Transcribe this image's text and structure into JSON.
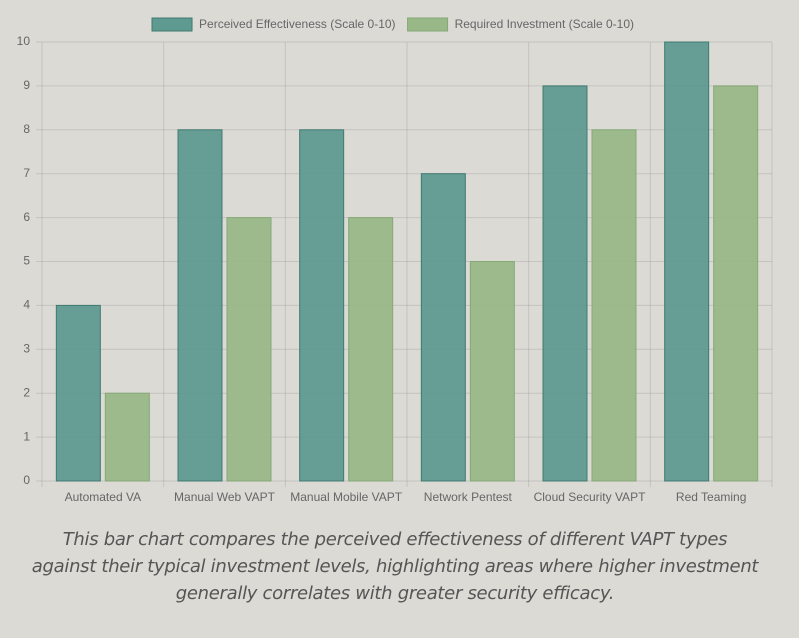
{
  "chart_data": {
    "type": "bar",
    "categories": [
      "Automated VA",
      "Manual Web VAPT",
      "Manual Mobile VAPT",
      "Network Pentest",
      "Cloud Security VAPT",
      "Red Teaming"
    ],
    "series": [
      {
        "name": "Perceived Effectiveness (Scale 0-10)",
        "color": "#5f9a90",
        "values": [
          4,
          8,
          8,
          7,
          9,
          10
        ]
      },
      {
        "name": "Required Investment (Scale 0-10)",
        "color": "#98b888",
        "values": [
          2,
          6,
          6,
          5,
          8,
          9
        ]
      }
    ],
    "ylim": [
      0,
      10
    ],
    "yticks": [
      0,
      1,
      2,
      3,
      4,
      5,
      6,
      7,
      8,
      9,
      10
    ],
    "grid": true,
    "caption": "This bar chart compares the perceived effectiveness of different VAPT types against their typical investment levels, highlighting areas where higher investment generally correlates with greater security efficacy."
  }
}
